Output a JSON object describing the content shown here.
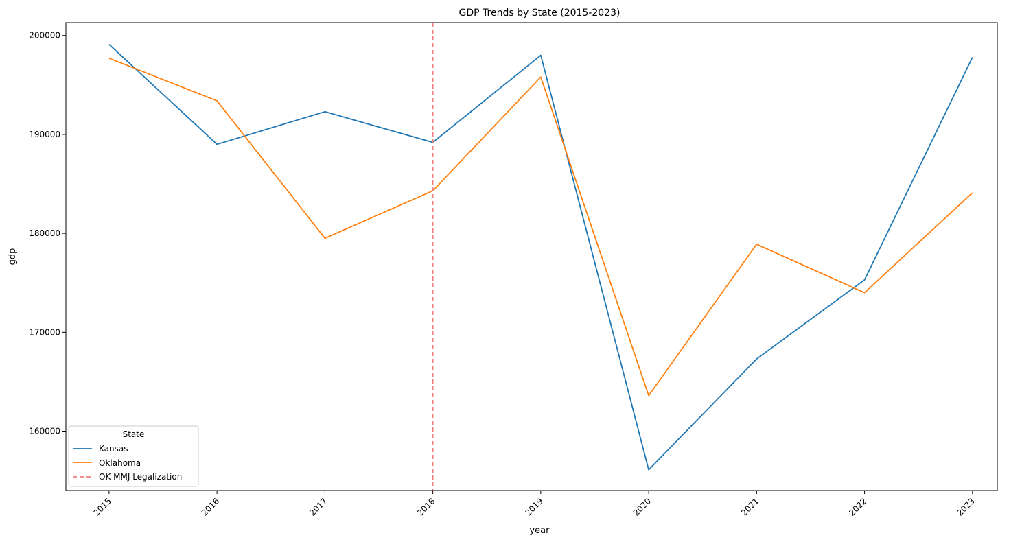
{
  "chart_data": {
    "type": "line",
    "title": "GDP Trends by State (2015-2023)",
    "xlabel": "year",
    "ylabel": "gdp",
    "x": [
      2015,
      2016,
      2017,
      2018,
      2019,
      2020,
      2021,
      2022,
      2023
    ],
    "x_tick_labels": [
      "2015",
      "2016",
      "2017",
      "2018",
      "2019",
      "2020",
      "2021",
      "2022",
      "2023"
    ],
    "xlim": [
      2014.6,
      2023.23
    ],
    "ylim": [
      154000,
      201300
    ],
    "y_ticks": [
      160000,
      170000,
      180000,
      190000,
      200000
    ],
    "y_tick_labels": [
      "160000",
      "170000",
      "180000",
      "190000",
      "200000"
    ],
    "series": [
      {
        "name": "Kansas",
        "color": "#1f77b4",
        "values": [
          199100,
          189000,
          192300,
          189200,
          198000,
          156100,
          167300,
          175300,
          197800
        ]
      },
      {
        "name": "Oklahoma",
        "color": "#ff7f0e",
        "values": [
          197700,
          193400,
          179500,
          184300,
          195800,
          163600,
          178900,
          174000,
          184100
        ]
      }
    ],
    "annotations": [
      {
        "type": "vline",
        "x": 2018,
        "label": "OK MMJ Legalization",
        "color": "#f08080",
        "style": "dashed"
      }
    ],
    "legend": {
      "title": "State",
      "placement": "lower-left"
    },
    "grid": false
  }
}
